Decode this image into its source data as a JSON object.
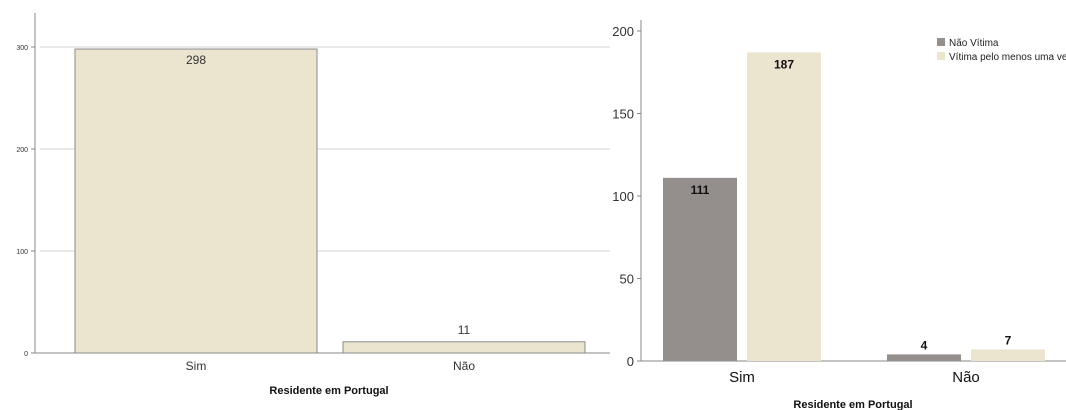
{
  "chart_data": [
    {
      "type": "bar",
      "title": "",
      "xlabel": "Residente em Portugal",
      "ylabel": "",
      "ylim": [
        0,
        300
      ],
      "yticks": [
        0,
        100,
        200,
        300
      ],
      "grid": true,
      "categories": [
        "Sim",
        "Não"
      ],
      "values": [
        298,
        11
      ],
      "data_labels": [
        "298",
        "11"
      ],
      "colors": {
        "bar": "#ebe5cf",
        "bar_border": "#8a8a8a",
        "grid": "#d4d4d4",
        "axis": "#8a8a8a"
      }
    },
    {
      "type": "bar",
      "title": "",
      "xlabel": "Residente em Portugal",
      "ylabel": "",
      "ylim": [
        0,
        200
      ],
      "yticks": [
        0,
        50,
        100,
        150,
        200
      ],
      "grid": false,
      "legend_position": "top-right",
      "categories": [
        "Sim",
        "Não"
      ],
      "series": [
        {
          "name": "Não Vítima",
          "values": [
            111,
            4
          ],
          "data_labels": [
            "111",
            "4"
          ],
          "color": "#948f8d"
        },
        {
          "name": "Vítima pelo menos uma ve",
          "values": [
            187,
            7
          ],
          "data_labels": [
            "187",
            "7"
          ],
          "color": "#ebe5cf"
        }
      ],
      "colors": {
        "axis": "#8a8a8a"
      }
    }
  ]
}
